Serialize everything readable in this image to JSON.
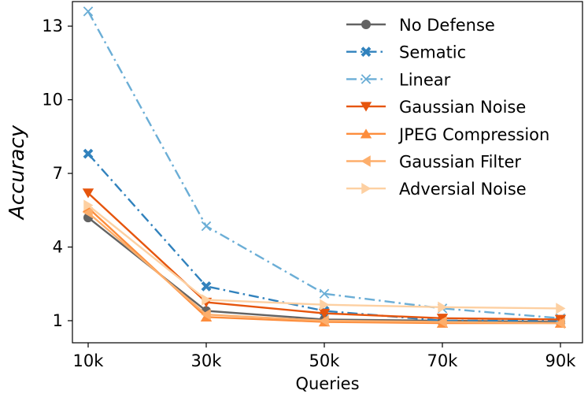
{
  "chart_data": {
    "type": "line",
    "title": "",
    "xlabel": "Queries",
    "ylabel": "Accuracy",
    "categories": [
      "10k",
      "30k",
      "50k",
      "70k",
      "90k"
    ],
    "yticks": [
      1,
      4,
      7,
      10,
      13
    ],
    "ylim": [
      0.1,
      14.0
    ],
    "grid": false,
    "legend_position": "top-right",
    "series": [
      {
        "name": "No Defense",
        "values": [
          5.2,
          1.4,
          1.05,
          1.0,
          0.95
        ],
        "color": "#636363",
        "linestyle": "solid",
        "marker": "circle"
      },
      {
        "name": "Sematic",
        "values": [
          7.8,
          2.4,
          1.4,
          1.0,
          1.0
        ],
        "color": "#3182bd",
        "linestyle": "dashdot",
        "marker": "x-filled"
      },
      {
        "name": "Linear",
        "values": [
          13.6,
          4.85,
          2.1,
          1.5,
          1.1
        ],
        "color": "#6baed6",
        "linestyle": "dashdot",
        "marker": "x-thin"
      },
      {
        "name": "Gaussian Noise",
        "values": [
          6.2,
          1.75,
          1.3,
          1.1,
          1.05
        ],
        "color": "#e6550d",
        "linestyle": "solid",
        "marker": "triangle-down"
      },
      {
        "name": "JPEG Compression",
        "values": [
          5.6,
          1.15,
          0.95,
          0.9,
          0.9
        ],
        "color": "#fd8d3c",
        "linestyle": "solid",
        "marker": "triangle-up"
      },
      {
        "name": "Gaussian Filter",
        "values": [
          5.4,
          1.25,
          1.0,
          0.95,
          0.9
        ],
        "color": "#fdae6b",
        "linestyle": "solid",
        "marker": "triangle-left"
      },
      {
        "name": "Adversial Noise",
        "values": [
          5.7,
          1.85,
          1.65,
          1.55,
          1.5
        ],
        "color": "#fdd0a2",
        "linestyle": "solid",
        "marker": "triangle-right"
      }
    ]
  }
}
